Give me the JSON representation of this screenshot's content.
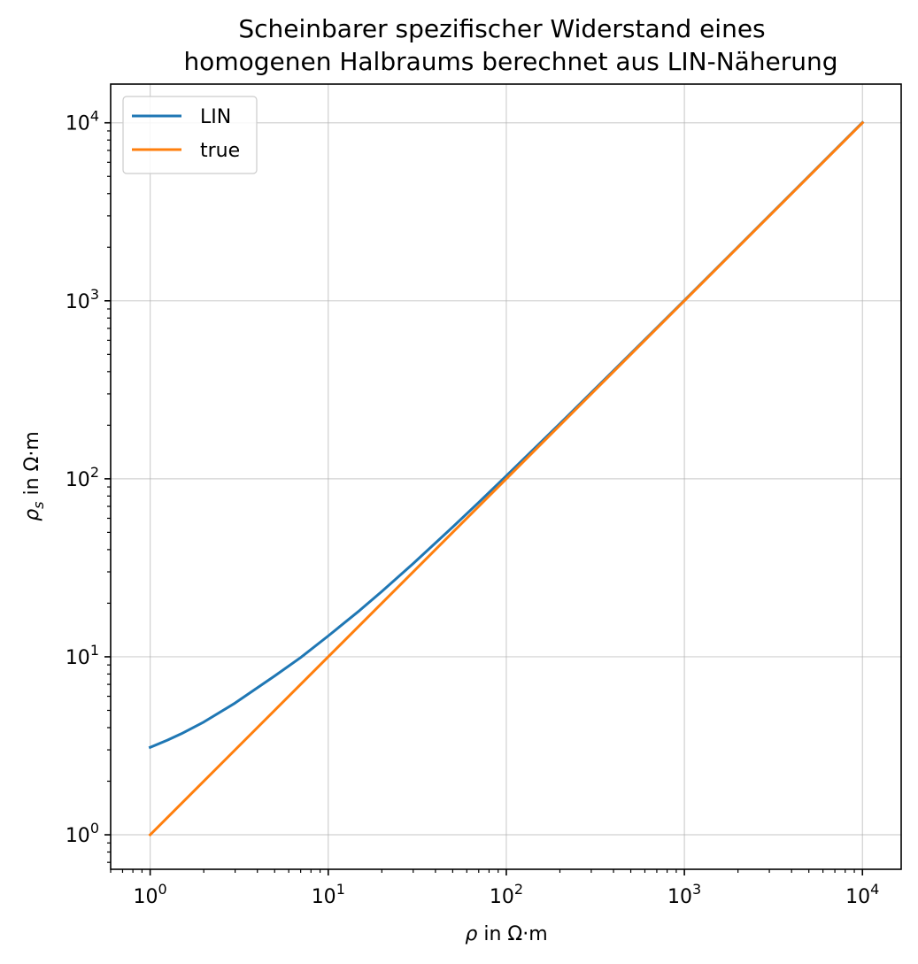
{
  "chart_data": {
    "type": "line",
    "title": [
      "Scheinbarer spezifischer Widerstand eines",
      "homogenen Halbraums berechnet aus LIN-Näherung"
    ],
    "xlabel": {
      "symbol": "ρ",
      "rest": " in Ω·m"
    },
    "ylabel": {
      "symbol": "ρ",
      "subscript": "s",
      "rest": " in Ω·m"
    },
    "xscale": "log",
    "yscale": "log",
    "xlim": [
      0.6,
      16500
    ],
    "ylim": [
      0.64,
      16500
    ],
    "grid": true,
    "legend_position": "top-left",
    "xticks": [
      {
        "value": 1,
        "base": "10",
        "exp": "0"
      },
      {
        "value": 10,
        "base": "10",
        "exp": "1"
      },
      {
        "value": 100,
        "base": "10",
        "exp": "2"
      },
      {
        "value": 1000,
        "base": "10",
        "exp": "3"
      },
      {
        "value": 10000,
        "base": "10",
        "exp": "4"
      }
    ],
    "yticks": [
      {
        "value": 1,
        "base": "10",
        "exp": "0"
      },
      {
        "value": 10,
        "base": "10",
        "exp": "1"
      },
      {
        "value": 100,
        "base": "10",
        "exp": "2"
      },
      {
        "value": 1000,
        "base": "10",
        "exp": "3"
      },
      {
        "value": 10000,
        "base": "10",
        "exp": "4"
      }
    ],
    "series": [
      {
        "name": "LIN",
        "color": "#1f77b4",
        "x": [
          1,
          1.25,
          1.5,
          2,
          3,
          5,
          7,
          10,
          15,
          20,
          30,
          50,
          70,
          100,
          200,
          500,
          1000,
          2000,
          5000,
          10000
        ],
        "y": [
          3.1,
          3.4,
          3.7,
          4.3,
          5.5,
          7.8,
          9.9,
          13.1,
          18.2,
          23.3,
          33.4,
          53.6,
          73.7,
          103.9,
          204,
          505,
          1006,
          2008,
          5020,
          10040
        ]
      },
      {
        "name": "true",
        "color": "#ff7f0e",
        "x": [
          1,
          10,
          100,
          1000,
          10000
        ],
        "y": [
          1,
          10,
          100,
          1000,
          10000
        ]
      }
    ]
  }
}
